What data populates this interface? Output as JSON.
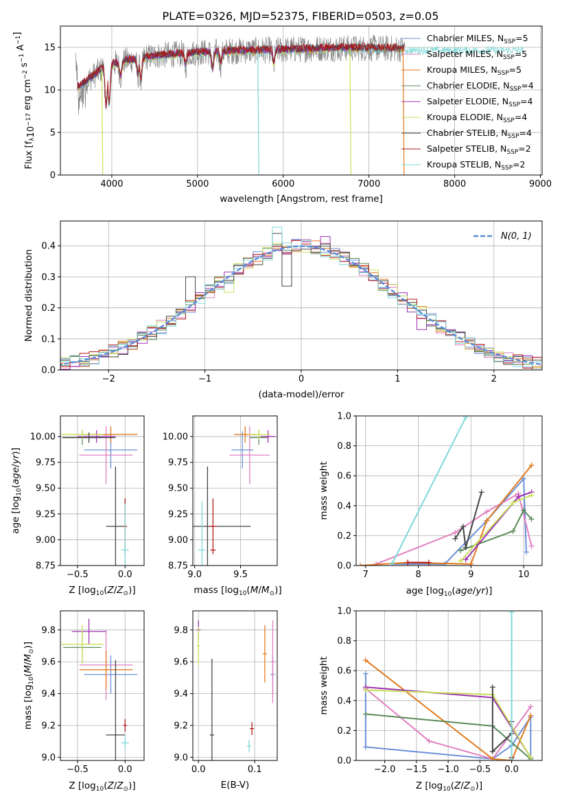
{
  "figure": {
    "title": "PLATE=0326, MJD=52375, FIBERID=0503, z=0.05"
  },
  "colors": {
    "Chabrier MILES": "#6a8fd8",
    "Salpeter MILES": "#e07fc0",
    "Kroupa MILES": "#e07a1e",
    "Chabrier ELODIE": "#5a8a5a",
    "Salpeter ELODIE": "#9b30b0",
    "Kroupa ELODIE": "#c8e05a",
    "Chabrier STELIB": "#444444",
    "Salpeter STELIB": "#b01818",
    "Kroupa STELIB": "#7fd8d8",
    "spectrum_data": "#808080",
    "normal_curve": "#5a8ad8"
  },
  "chart_data": [
    {
      "id": "spectrum",
      "type": "line",
      "title": "PLATE=0326, MJD=52375, FIBERID=0503, z=0.05",
      "xlabel": "wavelength [Angstrom, rest frame]",
      "ylabel": "Flux [f_λ 10^-17 erg cm^-2 s^-1 A^-1]",
      "xlim": [
        3400,
        9020
      ],
      "ylim": [
        0,
        17.5
      ],
      "xticks": [
        4000,
        5000,
        6000,
        7000,
        8000,
        9000
      ],
      "yticks": [
        0,
        5,
        10,
        15
      ],
      "legend_position": "right",
      "legend": [
        {
          "label": "Chabrier MILES, N",
          "sub": "SSP",
          "suffix": "=5",
          "series": "Chabrier MILES"
        },
        {
          "label": "Salpeter MILES, N",
          "sub": "SSP",
          "suffix": "=5",
          "series": "Salpeter MILES"
        },
        {
          "label": "Kroupa MILES, N",
          "sub": "SSP",
          "suffix": "=5",
          "series": "Kroupa MILES"
        },
        {
          "label": "Chabrier ELODIE, N",
          "sub": "SSP",
          "suffix": "=4",
          "series": "Chabrier ELODIE"
        },
        {
          "label": "Salpeter ELODIE, N",
          "sub": "SSP",
          "suffix": "=4",
          "series": "Salpeter ELODIE"
        },
        {
          "label": "Kroupa ELODIE, N",
          "sub": "SSP",
          "suffix": "=4",
          "series": "Kroupa ELODIE"
        },
        {
          "label": "Chabrier STELIB, N",
          "sub": "SSP",
          "suffix": "=4",
          "series": "Chabrier STELIB"
        },
        {
          "label": "Salpeter STELIB, N",
          "sub": "SSP",
          "suffix": "=2",
          "series": "Salpeter STELIB"
        },
        {
          "label": "Kroupa STELIB, N",
          "sub": "SSP",
          "suffix": "=2",
          "series": "Kroupa STELIB"
        }
      ],
      "continuum_points": [
        [
          3600,
          10.3
        ],
        [
          3700,
          11.0
        ],
        [
          3800,
          11.8
        ],
        [
          3900,
          12.6
        ],
        [
          4000,
          13.0
        ],
        [
          4200,
          13.5
        ],
        [
          4500,
          14.0
        ],
        [
          5000,
          14.4
        ],
        [
          5500,
          14.6
        ],
        [
          6000,
          14.7
        ],
        [
          6500,
          14.9
        ],
        [
          7000,
          14.9
        ],
        [
          7500,
          14.8
        ],
        [
          8000,
          14.8
        ],
        [
          8500,
          14.8
        ],
        [
          8800,
          14.8
        ]
      ],
      "absorption_lines": [
        [
          3934,
          7.4
        ],
        [
          3969,
          7.9
        ],
        [
          4102,
          11.5
        ],
        [
          4304,
          11.6
        ],
        [
          4340,
          11.0
        ],
        [
          4861,
          12.8
        ],
        [
          5175,
          12.3
        ],
        [
          5270,
          13.0
        ],
        [
          5890,
          13.0
        ]
      ],
      "dropouts": [
        {
          "series": "Kroupa ELODIE",
          "x": 3895
        },
        {
          "series": "Kroupa STELIB",
          "x": 5715
        },
        {
          "series": "Kroupa ELODIE",
          "x": 6790
        },
        {
          "series": "Kroupa MILES",
          "x": 7410
        }
      ],
      "series_ranges": {
        "Kroupa STELIB": [
          3600,
          8800
        ],
        "Kroupa ELODIE": [
          3600,
          6800
        ],
        "Kroupa MILES": [
          3600,
          7410
        ],
        "Chabrier MILES": [
          3600,
          7410
        ],
        "Salpeter MILES": [
          3600,
          7410
        ],
        "Salpeter ELODIE": [
          3600,
          6800
        ]
      }
    },
    {
      "id": "residuals",
      "type": "histogram",
      "xlabel": "(data-model)/error",
      "ylabel": "Normed distribution",
      "xlim": [
        -2.5,
        2.5
      ],
      "ylim": [
        0,
        0.48
      ],
      "xticks": [
        -2,
        -1,
        0,
        1,
        2
      ],
      "yticks": [
        0.0,
        0.1,
        0.2,
        0.3,
        0.4
      ],
      "bin_width": 0.1,
      "normal_curve": {
        "label": "N(0,1)",
        "mean": 0,
        "sd": 1
      },
      "legend_position": "upper right",
      "highlighted_bins": [
        {
          "series": "Kroupa STELIB",
          "x": -0.2,
          "y": 0.46
        },
        {
          "series": "Chabrier STELIB",
          "x": -0.2,
          "y": 0.44
        },
        {
          "series": "Chabrier STELIB",
          "x": -0.1,
          "y": 0.27
        },
        {
          "series": "Salpeter ELODIE",
          "x": 0.3,
          "y": 0.43
        },
        {
          "series": "Kroupa ELODIE",
          "x": -0.7,
          "y": 0.25
        },
        {
          "series": "Chabrier STELIB",
          "x": -0.5,
          "y": 0.36
        },
        {
          "series": "Chabrier STELIB",
          "x": -1.1,
          "y": 0.3
        },
        {
          "series": "Kroupa ELODIE",
          "x": 0.9,
          "y": 0.26
        },
        {
          "series": "Salpeter ELODIE",
          "x": 1.3,
          "y": 0.13
        },
        {
          "series": "Salpeter ELODIE",
          "x": 1.6,
          "y": 0.13
        }
      ]
    },
    {
      "id": "age_vs_Z",
      "type": "scatter",
      "xlabel": "Z [log10(Z/Z⊙)]",
      "ylabel": "age  [log10(age/yr)]",
      "xlim": [
        -0.68,
        0.2
      ],
      "ylim": [
        8.75,
        10.2
      ],
      "xticks": [
        -0.5,
        0.0
      ],
      "xticklabels": [
        "−0.5",
        "0.0"
      ],
      "yticks": [
        8.75,
        9.0,
        9.25,
        9.5,
        9.75,
        10.0
      ],
      "yticklabels": [
        "8.75",
        "9.00",
        "9.25",
        "9.50",
        "9.75",
        "10.00"
      ],
      "points": [
        {
          "series": "Chabrier MILES",
          "x": -0.15,
          "xerr": 0.28,
          "y": 9.87,
          "yerr": 0.18
        },
        {
          "series": "Salpeter MILES",
          "x": -0.2,
          "xerr": 0.28,
          "y": 9.82,
          "yerr": 0.28
        },
        {
          "series": "Kroupa MILES",
          "x": -0.15,
          "xerr": 0.28,
          "y": 10.02,
          "yerr": 0.08
        },
        {
          "series": "Chabrier ELODIE",
          "x": -0.45,
          "xerr": 0.2,
          "y": 9.99,
          "yerr": 0.07
        },
        {
          "series": "Salpeter ELODIE",
          "x": -0.3,
          "xerr": 0.2,
          "y": 10.0,
          "yerr": 0.06
        },
        {
          "series": "Kroupa ELODIE",
          "x": -0.45,
          "xerr": 0.22,
          "y": 10.02,
          "yerr": 0.05
        },
        {
          "series": "Chabrier STELIB",
          "x": -0.38,
          "xerr": 0.28,
          "y": 9.99,
          "yerr": 0.05
        },
        {
          "series": "Chabrier STELIB",
          "x": -0.1,
          "xerr": 0.1,
          "y": 9.13,
          "yerr": 0.58
        },
        {
          "series": "Salpeter STELIB",
          "x": 0.0,
          "xerr": 0.02,
          "y": 9.13,
          "yerr": 0.27
        },
        {
          "series": "Kroupa STELIB",
          "x": 0.0,
          "xerr": 0.04,
          "y": 8.9,
          "yerr": 0.45
        }
      ]
    },
    {
      "id": "age_vs_mass",
      "type": "scatter",
      "xlabel": "mass [log10(M/M⊙)]",
      "xlim": [
        8.98,
        9.9
      ],
      "ylim": [
        8.75,
        10.2
      ],
      "xticks": [
        9.0,
        9.5
      ],
      "xticklabels": [
        "9.0",
        "9.5"
      ],
      "yticks": [
        8.75,
        9.0,
        9.25,
        9.5,
        9.75,
        10.0
      ],
      "yticklabels": [
        "8.75",
        "9.00",
        "9.25",
        "9.50",
        "9.75",
        "10.00"
      ],
      "points": [
        {
          "series": "Chabrier MILES",
          "x": 9.52,
          "xerr": 0.12,
          "y": 9.87,
          "yerr": 0.18
        },
        {
          "series": "Salpeter MILES",
          "x": 9.6,
          "xerr": 0.22,
          "y": 9.82,
          "yerr": 0.28
        },
        {
          "series": "Kroupa MILES",
          "x": 9.55,
          "xerr": 0.12,
          "y": 10.02,
          "yerr": 0.08
        },
        {
          "series": "Chabrier ELODIE",
          "x": 9.7,
          "xerr": 0.1,
          "y": 9.99,
          "yerr": 0.07
        },
        {
          "series": "Salpeter ELODIE",
          "x": 9.8,
          "xerr": 0.08,
          "y": 10.0,
          "yerr": 0.06
        },
        {
          "series": "Kroupa ELODIE",
          "x": 9.7,
          "xerr": 0.12,
          "y": 10.02,
          "yerr": 0.05
        },
        {
          "series": "Chabrier STELIB",
          "x": 9.14,
          "xerr": 0.47,
          "y": 9.13,
          "yerr": 0.58
        },
        {
          "series": "Salpeter STELIB",
          "x": 9.2,
          "xerr": 0.04,
          "y": 9.13,
          "yerr": 0.27
        },
        {
          "series": "Salpeter STELIB",
          "x": 9.2,
          "xerr": 0.03,
          "y": 8.9,
          "yerr": 0.0
        },
        {
          "series": "Kroupa STELIB",
          "x": 9.08,
          "xerr": 0.04,
          "y": 8.9,
          "yerr": 0.47
        }
      ]
    },
    {
      "id": "mass_weight_vs_age",
      "type": "line",
      "xlabel": "age  [log10(age/yr)]",
      "ylabel": "mass weight",
      "xlim": [
        6.82,
        10.35
      ],
      "ylim": [
        0,
        1.0
      ],
      "xticks": [
        7,
        8,
        9,
        10
      ],
      "yticks": [
        0.0,
        0.2,
        0.4,
        0.6,
        0.8,
        1.0
      ],
      "series": [
        {
          "name": "Chabrier MILES",
          "x": [
            7.5,
            8.5,
            9.3,
            10.0,
            10.05
          ],
          "y": [
            0.01,
            0.01,
            0.3,
            0.58,
            0.09
          ]
        },
        {
          "name": "Salpeter MILES",
          "x": [
            7.2,
            8.7,
            9.3,
            9.9,
            10.15
          ],
          "y": [
            0.01,
            0.22,
            0.36,
            0.48,
            0.13
          ]
        },
        {
          "name": "Kroupa MILES",
          "x": [
            6.9,
            7.8,
            9.0,
            9.3,
            10.15
          ],
          "y": [
            0.0,
            0.02,
            0.01,
            0.3,
            0.67
          ]
        },
        {
          "name": "Chabrier ELODIE",
          "x": [
            8.8,
            9.8,
            10.0,
            10.15
          ],
          "y": [
            0.1,
            0.23,
            0.37,
            0.31
          ]
        },
        {
          "name": "Salpeter ELODIE",
          "x": [
            8.9,
            9.9,
            10.15
          ],
          "y": [
            0.04,
            0.46,
            0.49
          ]
        },
        {
          "name": "Kroupa ELODIE",
          "x": [
            8.8,
            9.8,
            10.15
          ],
          "y": [
            0.03,
            0.42,
            0.47
          ]
        },
        {
          "name": "Chabrier STELIB",
          "x": [
            8.7,
            8.85,
            8.9,
            9.2
          ],
          "y": [
            0.18,
            0.26,
            0.12,
            0.49
          ]
        },
        {
          "name": "Salpeter STELIB",
          "x": [
            7.8,
            8.2
          ],
          "y": [
            0.02,
            0.02
          ]
        },
        {
          "name": "Kroupa STELIB",
          "x": [
            7.5,
            8.9
          ],
          "y": [
            0.01,
            0.99
          ]
        }
      ]
    },
    {
      "id": "mass_vs_Z",
      "type": "scatter",
      "xlabel": "Z [log10(Z/Z⊙)]",
      "ylabel": "mass [log10(M/M⊙)]",
      "xlim": [
        -0.68,
        0.2
      ],
      "ylim": [
        8.98,
        9.92
      ],
      "xticks": [
        -0.5,
        0.0
      ],
      "xticklabels": [
        "−0.5",
        "0.0"
      ],
      "yticks": [
        9.0,
        9.2,
        9.4,
        9.6,
        9.8
      ],
      "yticklabels": [
        "9.0",
        "9.2",
        "9.4",
        "9.6",
        "9.8"
      ],
      "points": [
        {
          "series": "Chabrier MILES",
          "x": -0.15,
          "xerr": 0.28,
          "y": 9.52,
          "yerr": 0.12
        },
        {
          "series": "Salpeter MILES",
          "x": -0.2,
          "xerr": 0.28,
          "y": 9.58,
          "yerr": 0.22
        },
        {
          "series": "Kroupa MILES",
          "x": -0.2,
          "xerr": 0.28,
          "y": 9.55,
          "yerr": 0.12
        },
        {
          "series": "Chabrier ELODIE",
          "x": -0.45,
          "xerr": 0.2,
          "y": 9.69,
          "yerr": 0.1
        },
        {
          "series": "Salpeter ELODIE",
          "x": -0.38,
          "xerr": 0.18,
          "y": 9.79,
          "yerr": 0.08
        },
        {
          "series": "Kroupa ELODIE",
          "x": -0.45,
          "xerr": 0.22,
          "y": 9.71,
          "yerr": 0.12
        },
        {
          "series": "Chabrier STELIB",
          "x": -0.1,
          "xerr": 0.1,
          "y": 9.14,
          "yerr": 0.47
        },
        {
          "series": "Salpeter STELIB",
          "x": 0.0,
          "xerr": 0.02,
          "y": 9.2,
          "yerr": 0.04
        },
        {
          "series": "Kroupa STELIB",
          "x": 0.0,
          "xerr": 0.04,
          "y": 9.09,
          "yerr": 0.04
        }
      ]
    },
    {
      "id": "mass_vs_EBV",
      "type": "scatter",
      "xlabel": "E(B-V)",
      "xlim": [
        -0.01,
        0.14
      ],
      "ylim": [
        8.98,
        9.92
      ],
      "xticks": [
        0.0,
        0.1
      ],
      "xticklabels": [
        "0.0",
        "0.1"
      ],
      "yticks": [
        9.0,
        9.2,
        9.4,
        9.6,
        9.8
      ],
      "yticklabels": [
        "9.0",
        "9.2",
        "9.4",
        "9.6",
        "9.8"
      ],
      "points": [
        {
          "series": "Chabrier MILES",
          "x": 0.132,
          "y": 9.52,
          "yerr": 0.12
        },
        {
          "series": "Salpeter MILES",
          "x": 0.132,
          "y": 9.6,
          "yerr": 0.26
        },
        {
          "series": "Kroupa MILES",
          "x": 0.118,
          "y": 9.65,
          "yerr": 0.18
        },
        {
          "series": "Salpeter ELODIE",
          "x": 0.0,
          "y": 9.8,
          "yerr": 0.06
        },
        {
          "series": "Kroupa ELODIE",
          "x": 0.0,
          "y": 9.7,
          "yerr": 0.12
        },
        {
          "series": "Chabrier STELIB",
          "x": 0.024,
          "y": 9.14,
          "yerr": 0.48
        },
        {
          "series": "Salpeter STELIB",
          "x": 0.095,
          "y": 9.18,
          "yerr": 0.04
        },
        {
          "series": "Kroupa STELIB",
          "x": 0.09,
          "y": 9.07,
          "yerr": 0.04
        }
      ]
    },
    {
      "id": "mass_weight_vs_Z",
      "type": "line",
      "xlabel": "Z [log10(Z/Z⊙)]",
      "ylabel": "mass weight",
      "xlim": [
        -2.45,
        0.48
      ],
      "ylim": [
        0,
        1.0
      ],
      "xticks": [
        -2.0,
        -1.5,
        -1.0,
        -0.5,
        0.0
      ],
      "xticklabels": [
        "−2.0",
        "−1.5",
        "−1.0",
        "−0.5",
        "0.0"
      ],
      "yticks": [
        0.0,
        0.2,
        0.4,
        0.6,
        0.8,
        1.0
      ],
      "series": [
        {
          "name": "Chabrier MILES",
          "x": [
            -2.3,
            -2.3,
            -0.3,
            0.0,
            0.3,
            0.3
          ],
          "y": [
            0.58,
            0.09,
            0.01,
            0.1,
            0.29,
            0.02
          ]
        },
        {
          "name": "Salpeter MILES",
          "x": [
            -2.3,
            -1.3,
            -0.3,
            0.3
          ],
          "y": [
            0.48,
            0.13,
            0.01,
            0.36
          ]
        },
        {
          "name": "Kroupa MILES",
          "x": [
            -2.3,
            -0.3,
            0.0,
            0.3
          ],
          "y": [
            0.67,
            0.01,
            0.0,
            0.3
          ]
        },
        {
          "name": "Chabrier ELODIE",
          "x": [
            -2.3,
            -0.3,
            0.3
          ],
          "y": [
            0.31,
            0.23,
            0.01
          ]
        },
        {
          "name": "Salpeter ELODIE",
          "x": [
            -2.3,
            -0.3,
            0.3
          ],
          "y": [
            0.49,
            0.42,
            0.02
          ]
        },
        {
          "name": "Kroupa ELODIE",
          "x": [
            -2.3,
            -0.3,
            0.3
          ],
          "y": [
            0.47,
            0.44,
            0.02
          ]
        },
        {
          "name": "Chabrier STELIB",
          "x": [
            -0.3,
            -0.3,
            0.0,
            0.0
          ],
          "y": [
            0.49,
            0.06,
            0.18,
            0.26
          ]
        },
        {
          "name": "Salpeter STELIB",
          "x": [
            0.0,
            0.0
          ],
          "y": [
            0.02,
            0.02
          ]
        },
        {
          "name": "Kroupa STELIB",
          "x": [
            0.0,
            0.0
          ],
          "y": [
            0.99,
            0.01
          ]
        }
      ]
    }
  ]
}
